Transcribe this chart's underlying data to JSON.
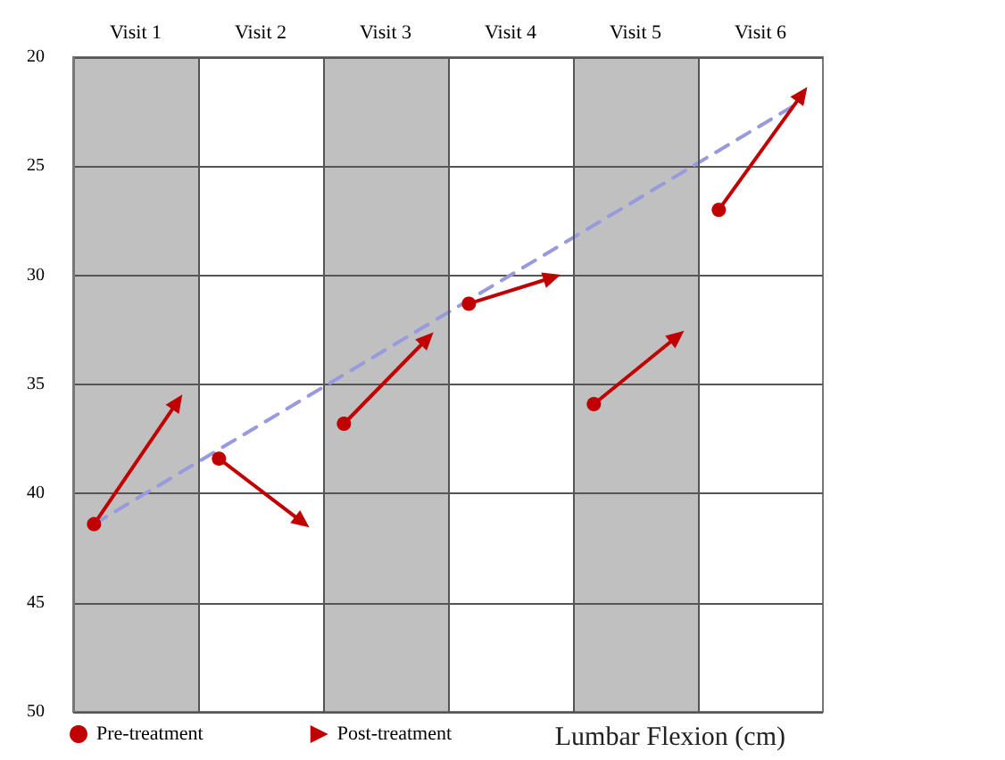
{
  "chart_data": {
    "type": "scatter",
    "xlabel": "Lumbar Flexion (cm)",
    "categories": [
      null,
      "Visit 1",
      null,
      null,
      "Visit 2",
      null,
      null,
      "Visit 3",
      null,
      null,
      "Visit 4",
      null,
      null,
      "Visit 5",
      null,
      null,
      "Visit 6",
      null
    ],
    "ylim": [
      50,
      20
    ],
    "yticks": [
      20,
      25,
      30,
      35,
      40,
      45,
      50
    ],
    "grid": true,
    "legend": "bottom left",
    "series": [
      {
        "name": "Pre-treatment",
        "type": "scatter",
        "marker": "circle",
        "color": "#c00000",
        "values": [
          41.4,
          null,
          null,
          38.4,
          null,
          null,
          36.8,
          null,
          null,
          31.3,
          null,
          null,
          35.9,
          null,
          null,
          27.0,
          null,
          null
        ]
      },
      {
        "name": "Post-treatment",
        "type": "scatter",
        "marker": "triangle",
        "color": "#c00000",
        "values": [
          null,
          null,
          35.8,
          null,
          null,
          41.3,
          null,
          null,
          32.9,
          null,
          null,
          30.1,
          null,
          null,
          32.8,
          null,
          null,
          21.7
        ]
      },
      {
        "type": "line",
        "line_style": "dashed",
        "color": "#9999dd",
        "values": [
          41.4,
          null,
          null,
          null,
          null,
          null,
          null,
          null,
          null,
          null,
          null,
          null,
          null,
          null,
          null,
          null,
          null,
          22.0
        ]
      }
    ]
  }
}
